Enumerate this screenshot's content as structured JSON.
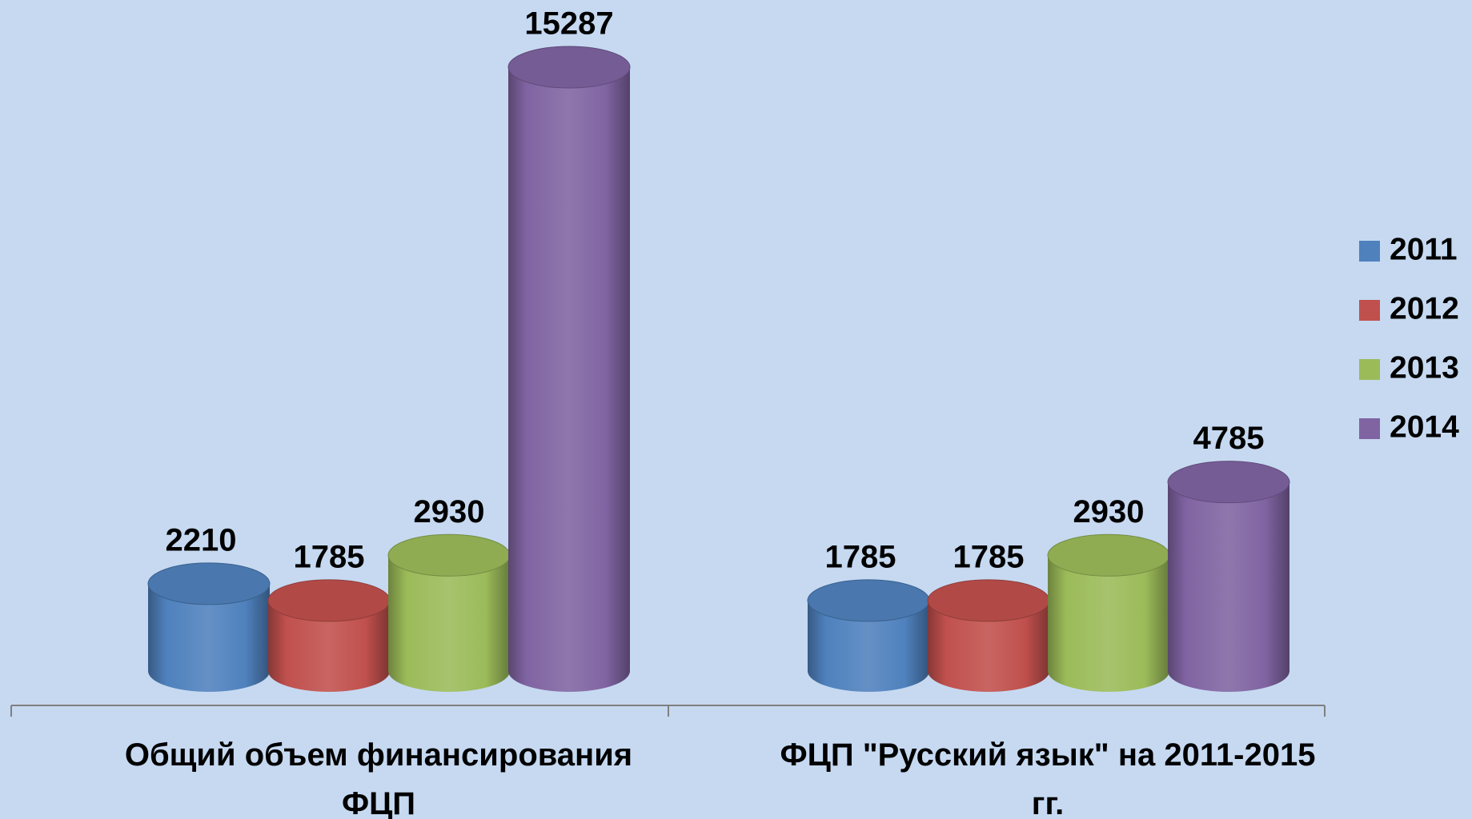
{
  "chart_data": {
    "type": "bar",
    "categories": [
      "Общий объем финансирования ФЦП",
      "ФЦП \"Русский язык\" на 2011-2015 гг."
    ],
    "series": [
      {
        "name": "2011",
        "color": "#4f81bd",
        "values": [
          2210,
          1785
        ]
      },
      {
        "name": "2012",
        "color": "#c0504d",
        "values": [
          1785,
          1785
        ]
      },
      {
        "name": "2013",
        "color": "#9bbb59",
        "values": [
          2930,
          2930
        ]
      },
      {
        "name": "2014",
        "color": "#8064a2",
        "values": [
          15287,
          4785
        ]
      }
    ],
    "legend": "right"
  }
}
